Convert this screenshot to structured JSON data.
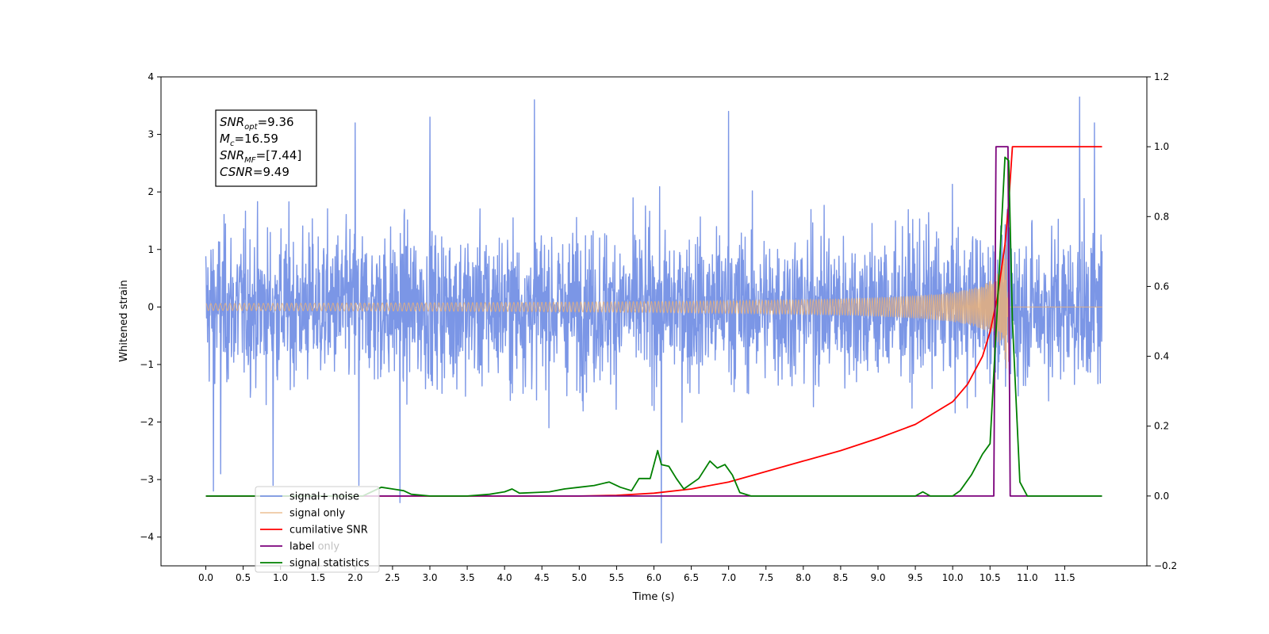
{
  "chart_data": {
    "type": "line",
    "xlabel": "Time (s)",
    "ylabel_left": "Whitened strain",
    "ylabel_right": "",
    "xlim": [
      -0.6,
      12.6
    ],
    "ylim_left": [
      -4.5,
      4.0
    ],
    "ylim_right": [
      -0.2,
      1.2
    ],
    "x_ticks": [
      0.0,
      0.5,
      1.0,
      1.5,
      2.0,
      2.5,
      3.0,
      3.5,
      4.0,
      4.5,
      5.0,
      5.5,
      6.0,
      6.5,
      7.0,
      7.5,
      8.0,
      8.5,
      9.0,
      9.5,
      10.0,
      10.5,
      11.0,
      11.5
    ],
    "x_tick_labels": [
      "0.0",
      "0.5",
      "1.0",
      "1.5",
      "2.0",
      "2.5",
      "3.0",
      "3.5",
      "4.0",
      "4.5",
      "5.0",
      "5.5",
      "6.0",
      "6.5",
      "7.0",
      "7.5",
      "8.0",
      "8.5",
      "9.0",
      "9.5",
      "10.0",
      "10.5",
      "11.0",
      "11.5"
    ],
    "y_ticks_left": [
      -4,
      -3,
      -2,
      -1,
      0,
      1,
      2,
      3,
      4
    ],
    "y_tick_labels_left": [
      "−4",
      "−3",
      "−2",
      "−1",
      "0",
      "1",
      "2",
      "3",
      "4"
    ],
    "y_ticks_right": [
      -0.2,
      0.0,
      0.2,
      0.4,
      0.6,
      0.8,
      1.0,
      1.2
    ],
    "y_tick_labels_right": [
      "−0.2",
      "0.0",
      "0.2",
      "0.4",
      "0.6",
      "0.8",
      "1.0",
      "1.2"
    ],
    "grid": false,
    "legend_position": "lower-left",
    "annotation": {
      "lines": [
        {
          "sym": "SNR",
          "sub": "opt",
          "value": "=9.36"
        },
        {
          "sym": "M",
          "sub": "c",
          "value": "=16.59"
        },
        {
          "sym": "SNR",
          "sub": "MF",
          "value": "=[7.44]"
        },
        {
          "sym": "CSNR",
          "sub": "",
          "value": "=9.49"
        }
      ]
    },
    "series": [
      {
        "name": "signal+ noise",
        "axis": "left",
        "color": "#7b96e6",
        "description_kind": "noise",
        "x_range": [
          0.0,
          12.0
        ],
        "envelope_typical": 1.5,
        "peaks": [
          [
            0.1,
            -3.2
          ],
          [
            0.2,
            -2.9
          ],
          [
            0.9,
            -3.1
          ],
          [
            2.0,
            3.2
          ],
          [
            2.05,
            -3.1
          ],
          [
            2.6,
            -3.4
          ],
          [
            3.0,
            3.3
          ],
          [
            4.4,
            3.6
          ],
          [
            6.1,
            -4.1
          ],
          [
            7.0,
            3.4
          ],
          [
            11.7,
            3.65
          ],
          [
            11.9,
            3.2
          ]
        ]
      },
      {
        "name": "signal only",
        "axis": "left",
        "color": "#e8b07a",
        "description_kind": "chirp",
        "x_range": [
          0.0,
          12.0
        ],
        "merger_time": 10.75,
        "peak_amplitude": 1.95
      },
      {
        "name": "cumilative SNR",
        "axis": "right",
        "color": "#ff0000",
        "x": [
          0.0,
          5.0,
          5.5,
          6.0,
          6.5,
          7.0,
          7.5,
          8.0,
          8.5,
          9.0,
          9.5,
          10.0,
          10.2,
          10.4,
          10.5,
          10.6,
          10.7,
          10.75,
          10.8,
          12.0
        ],
        "values": [
          0.0,
          0.0,
          0.002,
          0.008,
          0.02,
          0.04,
          0.07,
          0.1,
          0.13,
          0.165,
          0.205,
          0.27,
          0.32,
          0.4,
          0.47,
          0.57,
          0.72,
          0.84,
          1.0,
          1.0
        ]
      },
      {
        "name": "label",
        "axis": "right",
        "color": "#7b017b",
        "x": [
          0.0,
          10.55,
          10.58,
          10.74,
          10.77,
          12.0
        ],
        "values": [
          0.0,
          0.0,
          1.0,
          1.0,
          0.0,
          0.0
        ]
      },
      {
        "name": "label only",
        "axis": "right",
        "color": "#7b017b",
        "hidden_in_plot": true
      },
      {
        "name": "signal statistics",
        "axis": "right",
        "color": "#008000",
        "x": [
          0.0,
          2.1,
          2.2,
          2.35,
          2.5,
          2.65,
          2.75,
          3.0,
          3.5,
          3.8,
          4.0,
          4.1,
          4.2,
          4.4,
          4.6,
          4.8,
          5.0,
          5.2,
          5.4,
          5.55,
          5.7,
          5.8,
          5.95,
          6.05,
          6.1,
          6.2,
          6.3,
          6.4,
          6.6,
          6.75,
          6.85,
          6.95,
          7.05,
          7.15,
          7.3,
          7.5,
          9.5,
          9.6,
          9.7,
          9.8,
          10.0,
          10.1,
          10.25,
          10.4,
          10.5,
          10.6,
          10.7,
          10.75,
          10.8,
          10.9,
          11.0,
          12.0
        ],
        "values": [
          0.0,
          0.0,
          0.01,
          0.025,
          0.02,
          0.015,
          0.005,
          0.0,
          0.0,
          0.005,
          0.012,
          0.02,
          0.008,
          0.01,
          0.012,
          0.02,
          0.025,
          0.03,
          0.04,
          0.025,
          0.015,
          0.05,
          0.05,
          0.13,
          0.09,
          0.085,
          0.05,
          0.02,
          0.05,
          0.1,
          0.08,
          0.09,
          0.06,
          0.01,
          0.0,
          0.0,
          0.0,
          0.012,
          0.0,
          0.0,
          0.0,
          0.015,
          0.06,
          0.12,
          0.15,
          0.55,
          0.97,
          0.96,
          0.5,
          0.04,
          0.0,
          0.0
        ]
      }
    ]
  }
}
